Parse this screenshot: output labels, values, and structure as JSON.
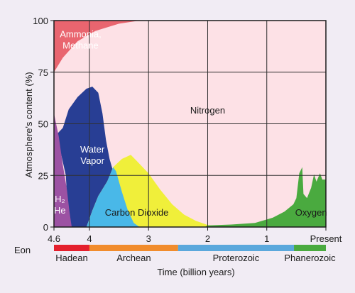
{
  "chart_data": {
    "type": "area",
    "xlabel": "Time (billion years)",
    "ylabel": "Atmosphere's content (%)",
    "xlim": [
      4.6,
      0
    ],
    "ylim": [
      0,
      100
    ],
    "x_ticks": [
      {
        "value": 4.6,
        "label": "4.6"
      },
      {
        "value": 4,
        "label": "4"
      },
      {
        "value": 3,
        "label": "3"
      },
      {
        "value": 2,
        "label": "2"
      },
      {
        "value": 1,
        "label": "1"
      },
      {
        "value": 0,
        "label": "Present"
      }
    ],
    "y_ticks": [
      {
        "value": 0,
        "label": "0"
      },
      {
        "value": 25,
        "label": "25"
      },
      {
        "value": 50,
        "label": "50"
      },
      {
        "value": 75,
        "label": "75"
      },
      {
        "value": 100,
        "label": "100"
      }
    ],
    "grid": true,
    "background_color": "#fde1e6",
    "series": [
      {
        "name": "Ammonia, Methane",
        "label_lines": [
          "Ammonia,",
          "Methane"
        ],
        "label_pos": {
          "x": 4.15,
          "y": 92
        },
        "label_color": "#ffffff",
        "color": "#e9656f",
        "upper": [
          [
            4.6,
            100
          ],
          [
            2.6,
            100
          ]
        ],
        "lower": [
          [
            4.6,
            75
          ],
          [
            4.45,
            82
          ],
          [
            4.2,
            90
          ],
          [
            3.9,
            95
          ],
          [
            3.5,
            98.5
          ],
          [
            3.2,
            99.8
          ],
          [
            2.6,
            100
          ]
        ]
      },
      {
        "name": "Water Vapor",
        "label_lines": [
          "Water",
          "Vapor"
        ],
        "label_pos": {
          "x": 3.95,
          "y": 36
        },
        "label_color": "#ffffff",
        "color": "#283e94",
        "points": [
          [
            4.55,
            45
          ],
          [
            4.45,
            48
          ],
          [
            4.35,
            57
          ],
          [
            4.2,
            63
          ],
          [
            4.05,
            67
          ],
          [
            3.95,
            68
          ],
          [
            3.85,
            65
          ],
          [
            3.78,
            55
          ],
          [
            3.72,
            42
          ],
          [
            3.66,
            33
          ],
          [
            3.6,
            27
          ],
          [
            3.7,
            22
          ],
          [
            3.85,
            15
          ],
          [
            3.95,
            8
          ],
          [
            4.05,
            0
          ],
          [
            4.35,
            0
          ],
          [
            4.4,
            25
          ],
          [
            4.5,
            38
          ]
        ]
      },
      {
        "name": "Carbon Dioxide",
        "label_lines": [
          "Carbon Dioxide"
        ],
        "label_pos": {
          "x": 3.2,
          "y": 5.5
        },
        "label_color": "#1a1a1a",
        "color": "#f0ef3a",
        "points": [
          [
            3.6,
            29
          ],
          [
            3.45,
            33
          ],
          [
            3.3,
            35
          ],
          [
            3.2,
            32
          ],
          [
            3.0,
            26
          ],
          [
            2.8,
            18
          ],
          [
            2.6,
            11
          ],
          [
            2.4,
            6
          ],
          [
            2.2,
            3
          ],
          [
            2.0,
            1
          ],
          [
            1.7,
            0
          ],
          [
            4.05,
            0
          ],
          [
            3.95,
            8
          ],
          [
            3.85,
            15
          ],
          [
            3.7,
            22
          ]
        ]
      },
      {
        "name": "Carbon Dioxide (early)",
        "color": "#49b8e8",
        "points": [
          [
            3.95,
            8
          ],
          [
            3.85,
            15
          ],
          [
            3.7,
            22
          ],
          [
            3.6,
            29
          ],
          [
            3.55,
            27
          ],
          [
            3.45,
            17
          ],
          [
            3.35,
            8
          ],
          [
            3.25,
            2
          ],
          [
            3.15,
            0
          ],
          [
            4.05,
            0
          ]
        ]
      },
      {
        "name": "H2 He",
        "label_lines": [
          "H₂",
          "He"
        ],
        "label_pos": {
          "x": 4.5,
          "y": 12
        },
        "label_color": "#ffffff",
        "color": "#9c52a3",
        "points": [
          [
            4.6,
            55
          ],
          [
            4.52,
            44
          ],
          [
            4.45,
            30
          ],
          [
            4.38,
            18
          ],
          [
            4.34,
            8
          ],
          [
            4.3,
            0
          ],
          [
            4.6,
            0
          ]
        ]
      },
      {
        "name": "Nitrogen",
        "label_lines": [
          "Nitrogen"
        ],
        "label_pos": {
          "x": 2.0,
          "y": 55
        },
        "label_color": "#1a1a1a",
        "color": "#fde1e6"
      },
      {
        "name": "Oxygen",
        "label_lines": [
          "Oxygen"
        ],
        "label_pos": {
          "x": 0.25,
          "y": 5.5
        },
        "label_color": "#1a1a1a",
        "color": "#4aaa3f",
        "points": [
          [
            2.05,
            0
          ],
          [
            2.0,
            0.8
          ],
          [
            1.6,
            1.2
          ],
          [
            1.2,
            2.0
          ],
          [
            0.9,
            4.5
          ],
          [
            0.7,
            7.5
          ],
          [
            0.55,
            11
          ],
          [
            0.5,
            14
          ],
          [
            0.45,
            26
          ],
          [
            0.4,
            29
          ],
          [
            0.38,
            16
          ],
          [
            0.32,
            14
          ],
          [
            0.25,
            19
          ],
          [
            0.2,
            25.5
          ],
          [
            0.16,
            22
          ],
          [
            0.1,
            26
          ],
          [
            0.06,
            23
          ],
          [
            0,
            23
          ],
          [
            0,
            0
          ]
        ]
      }
    ],
    "eons": [
      {
        "name": "Hadean",
        "start": 4.6,
        "end": 4.0,
        "color": "#e4202d"
      },
      {
        "name": "Archean",
        "start": 4.0,
        "end": 2.5,
        "color": "#f18c2c"
      },
      {
        "name": "Proterozoic",
        "start": 2.5,
        "end": 0.54,
        "color": "#5aa8dc"
      },
      {
        "name": "Phanerozoic",
        "start": 0.54,
        "end": 0,
        "color": "#4aaa3f"
      }
    ],
    "eon_axis_label": "Eon"
  }
}
